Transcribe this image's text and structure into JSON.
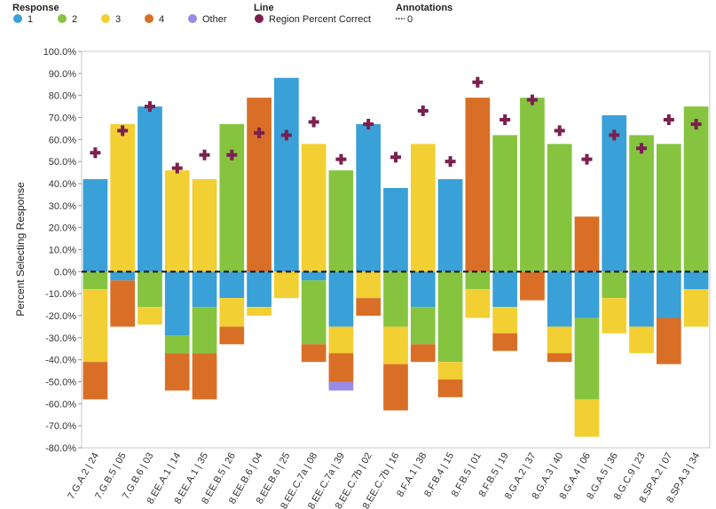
{
  "legend": {
    "response_title": "Response",
    "line_title": "Line",
    "annotations_title": "Annotations",
    "items": [
      {
        "label": "1",
        "color": "#3aa0d8"
      },
      {
        "label": "2",
        "color": "#86c440"
      },
      {
        "label": "3",
        "color": "#f2cf33"
      },
      {
        "label": "4",
        "color": "#d96f27"
      },
      {
        "label": "Other",
        "color": "#9a8ae6"
      }
    ],
    "line_item": {
      "label": "Region Percent Correct",
      "color": "#7a2050"
    },
    "annotation_item": {
      "label": "0"
    }
  },
  "chart_data": {
    "type": "bar",
    "ylabel": "Percent Selecting Response",
    "ylim": [
      -80,
      100
    ],
    "ytick_labels": [
      "100.0%",
      "90.0%",
      "80.0%",
      "70.0%",
      "60.0%",
      "50.0%",
      "40.0%",
      "30.0%",
      "20.0%",
      "10.0%",
      "0.0%",
      "-10.0%",
      "-20.0%",
      "-30.0%",
      "-40.0%",
      "-50.0%",
      "-60.0%",
      "-70.0%",
      "-80.0%"
    ],
    "baseline_annotation": 0,
    "categories": [
      "7.G.A.2 | 24",
      "7.G.B.5 | 05",
      "7.G.B.6 | 03",
      "8.EE.A.1 | 14",
      "8.EE.A.1 | 35",
      "8.EE.B.5 | 26",
      "8.EE.B.6 | 04",
      "8.EE.B.6 | 25",
      "8.EE.C.7a | 08",
      "8.EE.C.7a | 39",
      "8.EE.C.7b | 02",
      "8.EE.C.7b | 16",
      "8.F.A.1 | 38",
      "8.F.B.4 | 15",
      "8.F.B.5 | 01",
      "8.F.B.5 | 19",
      "8.G.A.2 | 37",
      "8.G.A.3 | 40",
      "8.G.A.4 | 06",
      "8.G.A.5 | 36",
      "8.G.C.9 | 23",
      "8.SP.A.2 | 07",
      "8.SP.A.3 | 34"
    ],
    "correct_response": [
      "1",
      "3",
      "1",
      "3",
      "3",
      "2",
      "4",
      "1",
      "3",
      "2",
      "1",
      "1",
      "3",
      "1",
      "4",
      "2",
      "2",
      "2",
      "4",
      "1",
      "2",
      "2",
      "2"
    ],
    "series": [
      {
        "name": "1",
        "values": [
          42,
          4,
          75,
          29,
          16,
          12,
          16,
          88,
          4,
          25,
          67,
          38,
          16,
          42,
          0,
          16,
          0,
          25,
          21,
          71,
          25,
          21,
          8
        ]
      },
      {
        "name": "2",
        "values": [
          8,
          0,
          16,
          8,
          21,
          67,
          0,
          0,
          29,
          46,
          0,
          25,
          17,
          41,
          8,
          62,
          79,
          58,
          37,
          12,
          62,
          58,
          75
        ]
      },
      {
        "name": "3",
        "values": [
          33,
          67,
          8,
          46,
          42,
          13,
          4,
          12,
          58,
          12,
          12,
          17,
          58,
          8,
          13,
          12,
          0,
          12,
          17,
          16,
          12,
          0,
          17
        ]
      },
      {
        "name": "4",
        "values": [
          17,
          21,
          0,
          17,
          21,
          8,
          79,
          0,
          8,
          13,
          8,
          21,
          8,
          8,
          79,
          8,
          13,
          4,
          25,
          0,
          0,
          21,
          0
        ]
      },
      {
        "name": "Other",
        "values": [
          0,
          0,
          0,
          0,
          0,
          0,
          0,
          0,
          0,
          4,
          0,
          0,
          0,
          0,
          0,
          0,
          0,
          0,
          0,
          0,
          0,
          0,
          0
        ]
      }
    ],
    "line": {
      "name": "Region Percent Correct",
      "values": [
        54,
        64,
        75,
        47,
        53,
        53,
        63,
        62,
        68,
        51,
        67,
        52,
        73,
        50,
        86,
        69,
        78,
        64,
        51,
        62,
        56,
        69,
        67
      ]
    }
  }
}
